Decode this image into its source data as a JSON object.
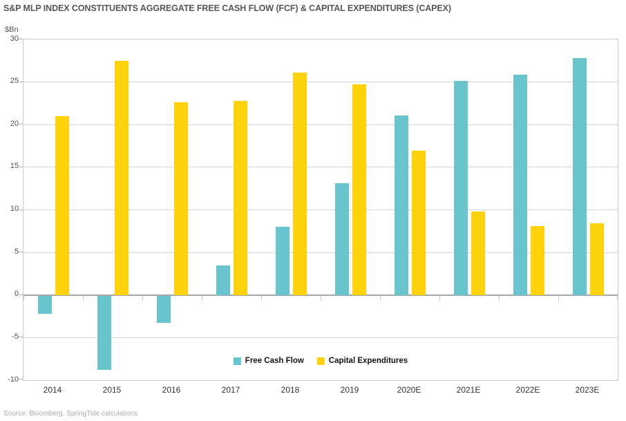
{
  "header": {
    "title": "S&P MLP INDEX CONSTITUENTS AGGREGATE FREE CASH FLOW (FCF) & CAPITAL EXPENDITURES (CAPEX)"
  },
  "footer": {
    "source": "Source: Bloomberg, SpringTide calculations"
  },
  "chart_data": {
    "type": "bar",
    "title": "S&P MLP INDEX CONSTITUENTS AGGREGATE FREE CASH FLOW (FCF) & CAPITAL EXPENDITURES (CAPEX)",
    "unit": "$Bn",
    "categories": [
      "2014",
      "2015",
      "2016",
      "2017",
      "2018",
      "2019",
      "2020E",
      "2021E",
      "2022E",
      "2023E"
    ],
    "series": [
      {
        "name": "Free Cash Flow",
        "color": "#68c5cd",
        "values": [
          -2.1,
          -8.7,
          -3.2,
          3.5,
          8.0,
          13.1,
          21.1,
          25.1,
          25.9,
          27.8
        ]
      },
      {
        "name": "Capital Expenditures",
        "color": "#ffd30c",
        "values": [
          21.0,
          27.5,
          22.6,
          22.8,
          26.1,
          24.7,
          16.9,
          9.8,
          8.1,
          8.4
        ]
      }
    ],
    "ylim": [
      -10,
      30
    ],
    "yticks": [
      30,
      25,
      20,
      15,
      10,
      5,
      0,
      -5,
      -10
    ],
    "grid": true,
    "legend_position": "bottom-center-inside",
    "colors": {
      "gridline": "#d4d6d7",
      "zero_line": "#a4a7a9",
      "plot_border": "#c9cbcd",
      "title_text": "#54565a",
      "axis_text": "#4a4d50",
      "source_text": "#a9abae"
    }
  }
}
